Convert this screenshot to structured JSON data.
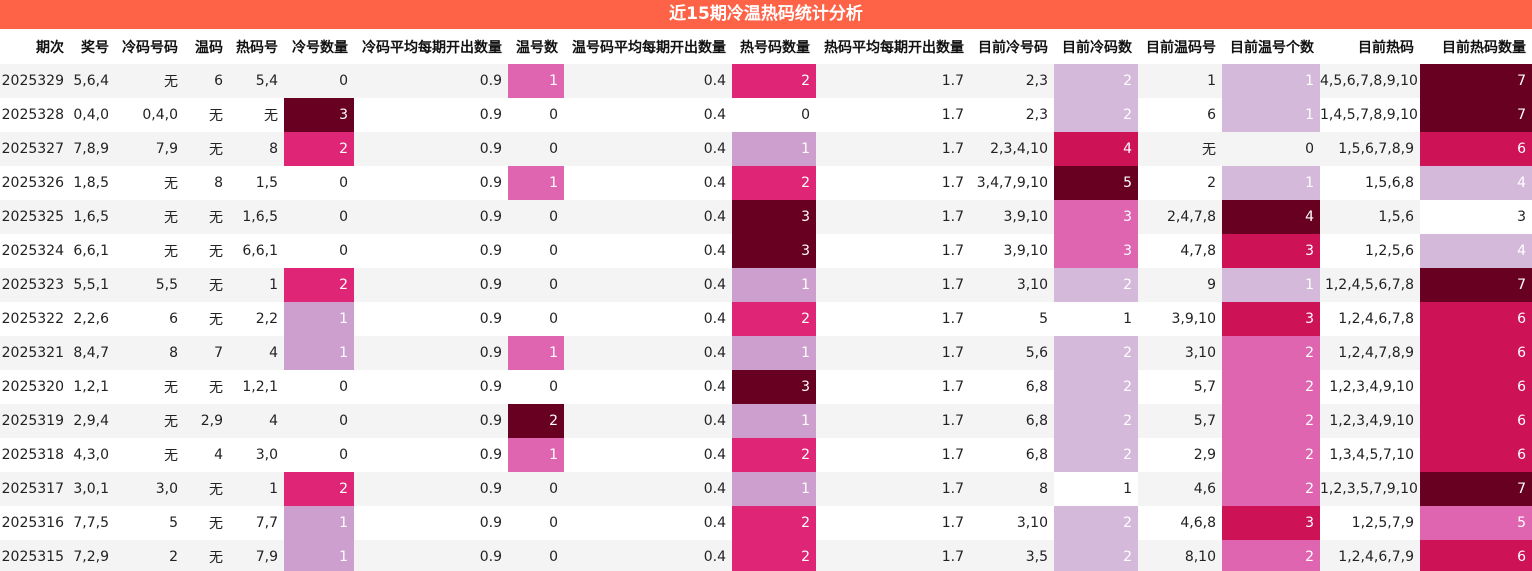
{
  "title": "近15期冷温热码统计分析",
  "columns": [
    "期次",
    "奖号",
    "冷码号码",
    "温码",
    "热码号",
    "冷号数量",
    "冷码平均每期开出数量",
    "温号数",
    "温号码平均每期开出数量",
    "热号码数量",
    "热码平均每期开出数量",
    "目前冷号码",
    "目前冷码数",
    "目前温码号",
    "目前温号个数",
    "目前热码",
    "目前热码数量"
  ],
  "heat_columns": [
    5,
    7,
    9,
    12,
    14,
    16
  ],
  "color_scale": {
    "1": "#cc9fce",
    "2": "#df2575",
    "3": "#680022",
    "4": "#d01154",
    "5": "#680022"
  },
  "color_scale_by_column": {
    "5": {
      "1": "#cc9fce",
      "2": "#df2575",
      "3": "#680022"
    },
    "7": {
      "1": "#df65b0",
      "2": "#680022"
    },
    "9": {
      "1": "#cc9fce",
      "2": "#df2575",
      "3": "#680022"
    },
    "12": {
      "1": "#ffffff",
      "2": "#d4b9da",
      "3": "#df65b0",
      "4": "#ce1256",
      "5": "#680022"
    },
    "14": {
      "1": "#d4b9da",
      "2": "#df65b0",
      "3": "#ce1256",
      "4": "#680022"
    },
    "16": {
      "3": "#ffffff",
      "4": "#d4b9da",
      "5": "#df65b0",
      "6": "#ce1256",
      "7": "#680022"
    }
  },
  "rows": [
    [
      "2025329",
      "5,6,4",
      "无",
      "6",
      "5,4",
      "0",
      "0.9",
      "1",
      "0.4",
      "2",
      "1.7",
      "2,3",
      "2",
      "1",
      "1",
      "4,5,6,7,8,9,10",
      "7"
    ],
    [
      "2025328",
      "0,4,0",
      "0,4,0",
      "无",
      "无",
      "3",
      "0.9",
      "0",
      "0.4",
      "0",
      "1.7",
      "2,3",
      "2",
      "6",
      "1",
      "1,4,5,7,8,9,10",
      "7"
    ],
    [
      "2025327",
      "7,8,9",
      "7,9",
      "无",
      "8",
      "2",
      "0.9",
      "0",
      "0.4",
      "1",
      "1.7",
      "2,3,4,10",
      "4",
      "无",
      "0",
      "1,5,6,7,8,9",
      "6"
    ],
    [
      "2025326",
      "1,8,5",
      "无",
      "8",
      "1,5",
      "0",
      "0.9",
      "1",
      "0.4",
      "2",
      "1.7",
      "3,4,7,9,10",
      "5",
      "2",
      "1",
      "1,5,6,8",
      "4"
    ],
    [
      "2025325",
      "1,6,5",
      "无",
      "无",
      "1,6,5",
      "0",
      "0.9",
      "0",
      "0.4",
      "3",
      "1.7",
      "3,9,10",
      "3",
      "2,4,7,8",
      "4",
      "1,5,6",
      "3"
    ],
    [
      "2025324",
      "6,6,1",
      "无",
      "无",
      "6,6,1",
      "0",
      "0.9",
      "0",
      "0.4",
      "3",
      "1.7",
      "3,9,10",
      "3",
      "4,7,8",
      "3",
      "1,2,5,6",
      "4"
    ],
    [
      "2025323",
      "5,5,1",
      "5,5",
      "无",
      "1",
      "2",
      "0.9",
      "0",
      "0.4",
      "1",
      "1.7",
      "3,10",
      "2",
      "9",
      "1",
      "1,2,4,5,6,7,8",
      "7"
    ],
    [
      "2025322",
      "2,2,6",
      "6",
      "无",
      "2,2",
      "1",
      "0.9",
      "0",
      "0.4",
      "2",
      "1.7",
      "5",
      "1",
      "3,9,10",
      "3",
      "1,2,4,6,7,8",
      "6"
    ],
    [
      "2025321",
      "8,4,7",
      "8",
      "7",
      "4",
      "1",
      "0.9",
      "1",
      "0.4",
      "1",
      "1.7",
      "5,6",
      "2",
      "3,10",
      "2",
      "1,2,4,7,8,9",
      "6"
    ],
    [
      "2025320",
      "1,2,1",
      "无",
      "无",
      "1,2,1",
      "0",
      "0.9",
      "0",
      "0.4",
      "3",
      "1.7",
      "6,8",
      "2",
      "5,7",
      "2",
      "1,2,3,4,9,10",
      "6"
    ],
    [
      "2025319",
      "2,9,4",
      "无",
      "2,9",
      "4",
      "0",
      "0.9",
      "2",
      "0.4",
      "1",
      "1.7",
      "6,8",
      "2",
      "5,7",
      "2",
      "1,2,3,4,9,10",
      "6"
    ],
    [
      "2025318",
      "4,3,0",
      "无",
      "4",
      "3,0",
      "0",
      "0.9",
      "1",
      "0.4",
      "2",
      "1.7",
      "6,8",
      "2",
      "2,9",
      "2",
      "1,3,4,5,7,10",
      "6"
    ],
    [
      "2025317",
      "3,0,1",
      "3,0",
      "无",
      "1",
      "2",
      "0.9",
      "0",
      "0.4",
      "1",
      "1.7",
      "8",
      "1",
      "4,6",
      "2",
      "1,2,3,5,7,9,10",
      "7"
    ],
    [
      "2025316",
      "7,7,5",
      "5",
      "无",
      "7,7",
      "1",
      "0.9",
      "0",
      "0.4",
      "2",
      "1.7",
      "3,10",
      "2",
      "4,6,8",
      "3",
      "1,2,5,7,9",
      "5"
    ],
    [
      "2025315",
      "7,2,9",
      "2",
      "无",
      "7,9",
      "1",
      "0.9",
      "0",
      "0.4",
      "2",
      "1.7",
      "3,5",
      "2",
      "8,10",
      "2",
      "1,2,4,6,7,9",
      "6"
    ]
  ]
}
